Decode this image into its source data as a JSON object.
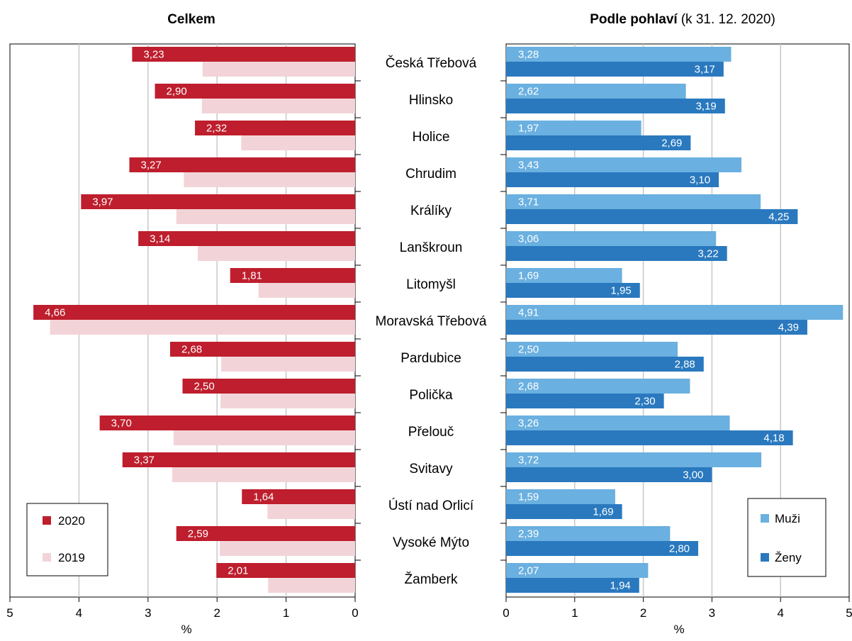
{
  "chart_data": [
    {
      "type": "bar",
      "orientation": "horizontal",
      "direction": "right-to-left",
      "title": "Celkem",
      "xlabel": "%",
      "xlim": [
        0,
        5
      ],
      "xticks": [
        "5",
        "4",
        "3",
        "2",
        "1",
        "0"
      ],
      "grid": true,
      "legend_position": "bottom-left",
      "categories": [
        "Česká Třebová",
        "Hlinsko",
        "Holice",
        "Chrudim",
        "Králíky",
        "Lanškroun",
        "Litomyšl",
        "Moravská Třebová",
        "Pardubice",
        "Polička",
        "Přelouč",
        "Svitavy",
        "Ústí nad Orlicí",
        "Vysoké Mýto",
        "Žamberk"
      ],
      "series": [
        {
          "name": "2020",
          "color": "#be1e2d",
          "values": [
            3.23,
            2.9,
            2.32,
            3.27,
            3.97,
            3.14,
            1.81,
            4.66,
            2.68,
            2.5,
            3.7,
            3.37,
            1.64,
            2.59,
            2.01
          ],
          "labels": [
            "3,23",
            "2,90",
            "2,32",
            "3,27",
            "3,97",
            "3,14",
            "1,81",
            "4,66",
            "2,68",
            "2,50",
            "3,70",
            "3,37",
            "1,64",
            "2,59",
            "2,01"
          ]
        },
        {
          "name": "2019",
          "color": "#f2d4d8",
          "values": [
            2.21,
            2.22,
            1.65,
            2.48,
            2.59,
            2.28,
            1.4,
            4.42,
            1.94,
            1.95,
            2.63,
            2.65,
            1.27,
            1.96,
            1.26
          ]
        }
      ]
    },
    {
      "type": "bar",
      "orientation": "horizontal",
      "title": "Podle pohlaví",
      "subtitle": "(k 31. 12. 2020)",
      "xlabel": "%",
      "xlim": [
        0,
        5
      ],
      "xticks": [
        "0",
        "1",
        "2",
        "3",
        "4",
        "5"
      ],
      "grid": true,
      "legend_position": "bottom-right",
      "categories": [
        "Česká Třebová",
        "Hlinsko",
        "Holice",
        "Chrudim",
        "Králíky",
        "Lanškroun",
        "Litomyšl",
        "Moravská Třebová",
        "Pardubice",
        "Polička",
        "Přelouč",
        "Svitavy",
        "Ústí nad Orlicí",
        "Vysoké Mýto",
        "Žamberk"
      ],
      "series": [
        {
          "name": "Muži",
          "color": "#6ab0e0",
          "values": [
            3.28,
            2.62,
            1.97,
            3.43,
            3.71,
            3.06,
            1.69,
            4.91,
            2.5,
            2.68,
            3.26,
            3.72,
            1.59,
            2.39,
            2.07
          ],
          "labels": [
            "3,28",
            "2,62",
            "1,97",
            "3,43",
            "3,71",
            "3,06",
            "1,69",
            "4,91",
            "2,50",
            "2,68",
            "3,26",
            "3,72",
            "1,59",
            "2,39",
            "2,07"
          ]
        },
        {
          "name": "Ženy",
          "color": "#2a79bf",
          "values": [
            3.17,
            3.19,
            2.69,
            3.1,
            4.25,
            3.22,
            1.95,
            4.39,
            2.88,
            2.3,
            4.18,
            3.0,
            1.69,
            2.8,
            1.94
          ],
          "labels": [
            "3,17",
            "3,19",
            "2,69",
            "3,10",
            "4,25",
            "3,22",
            "1,95",
            "4,39",
            "2,88",
            "2,30",
            "4,18",
            "3,00",
            "1,69",
            "2,80",
            "1,94"
          ]
        }
      ]
    }
  ]
}
